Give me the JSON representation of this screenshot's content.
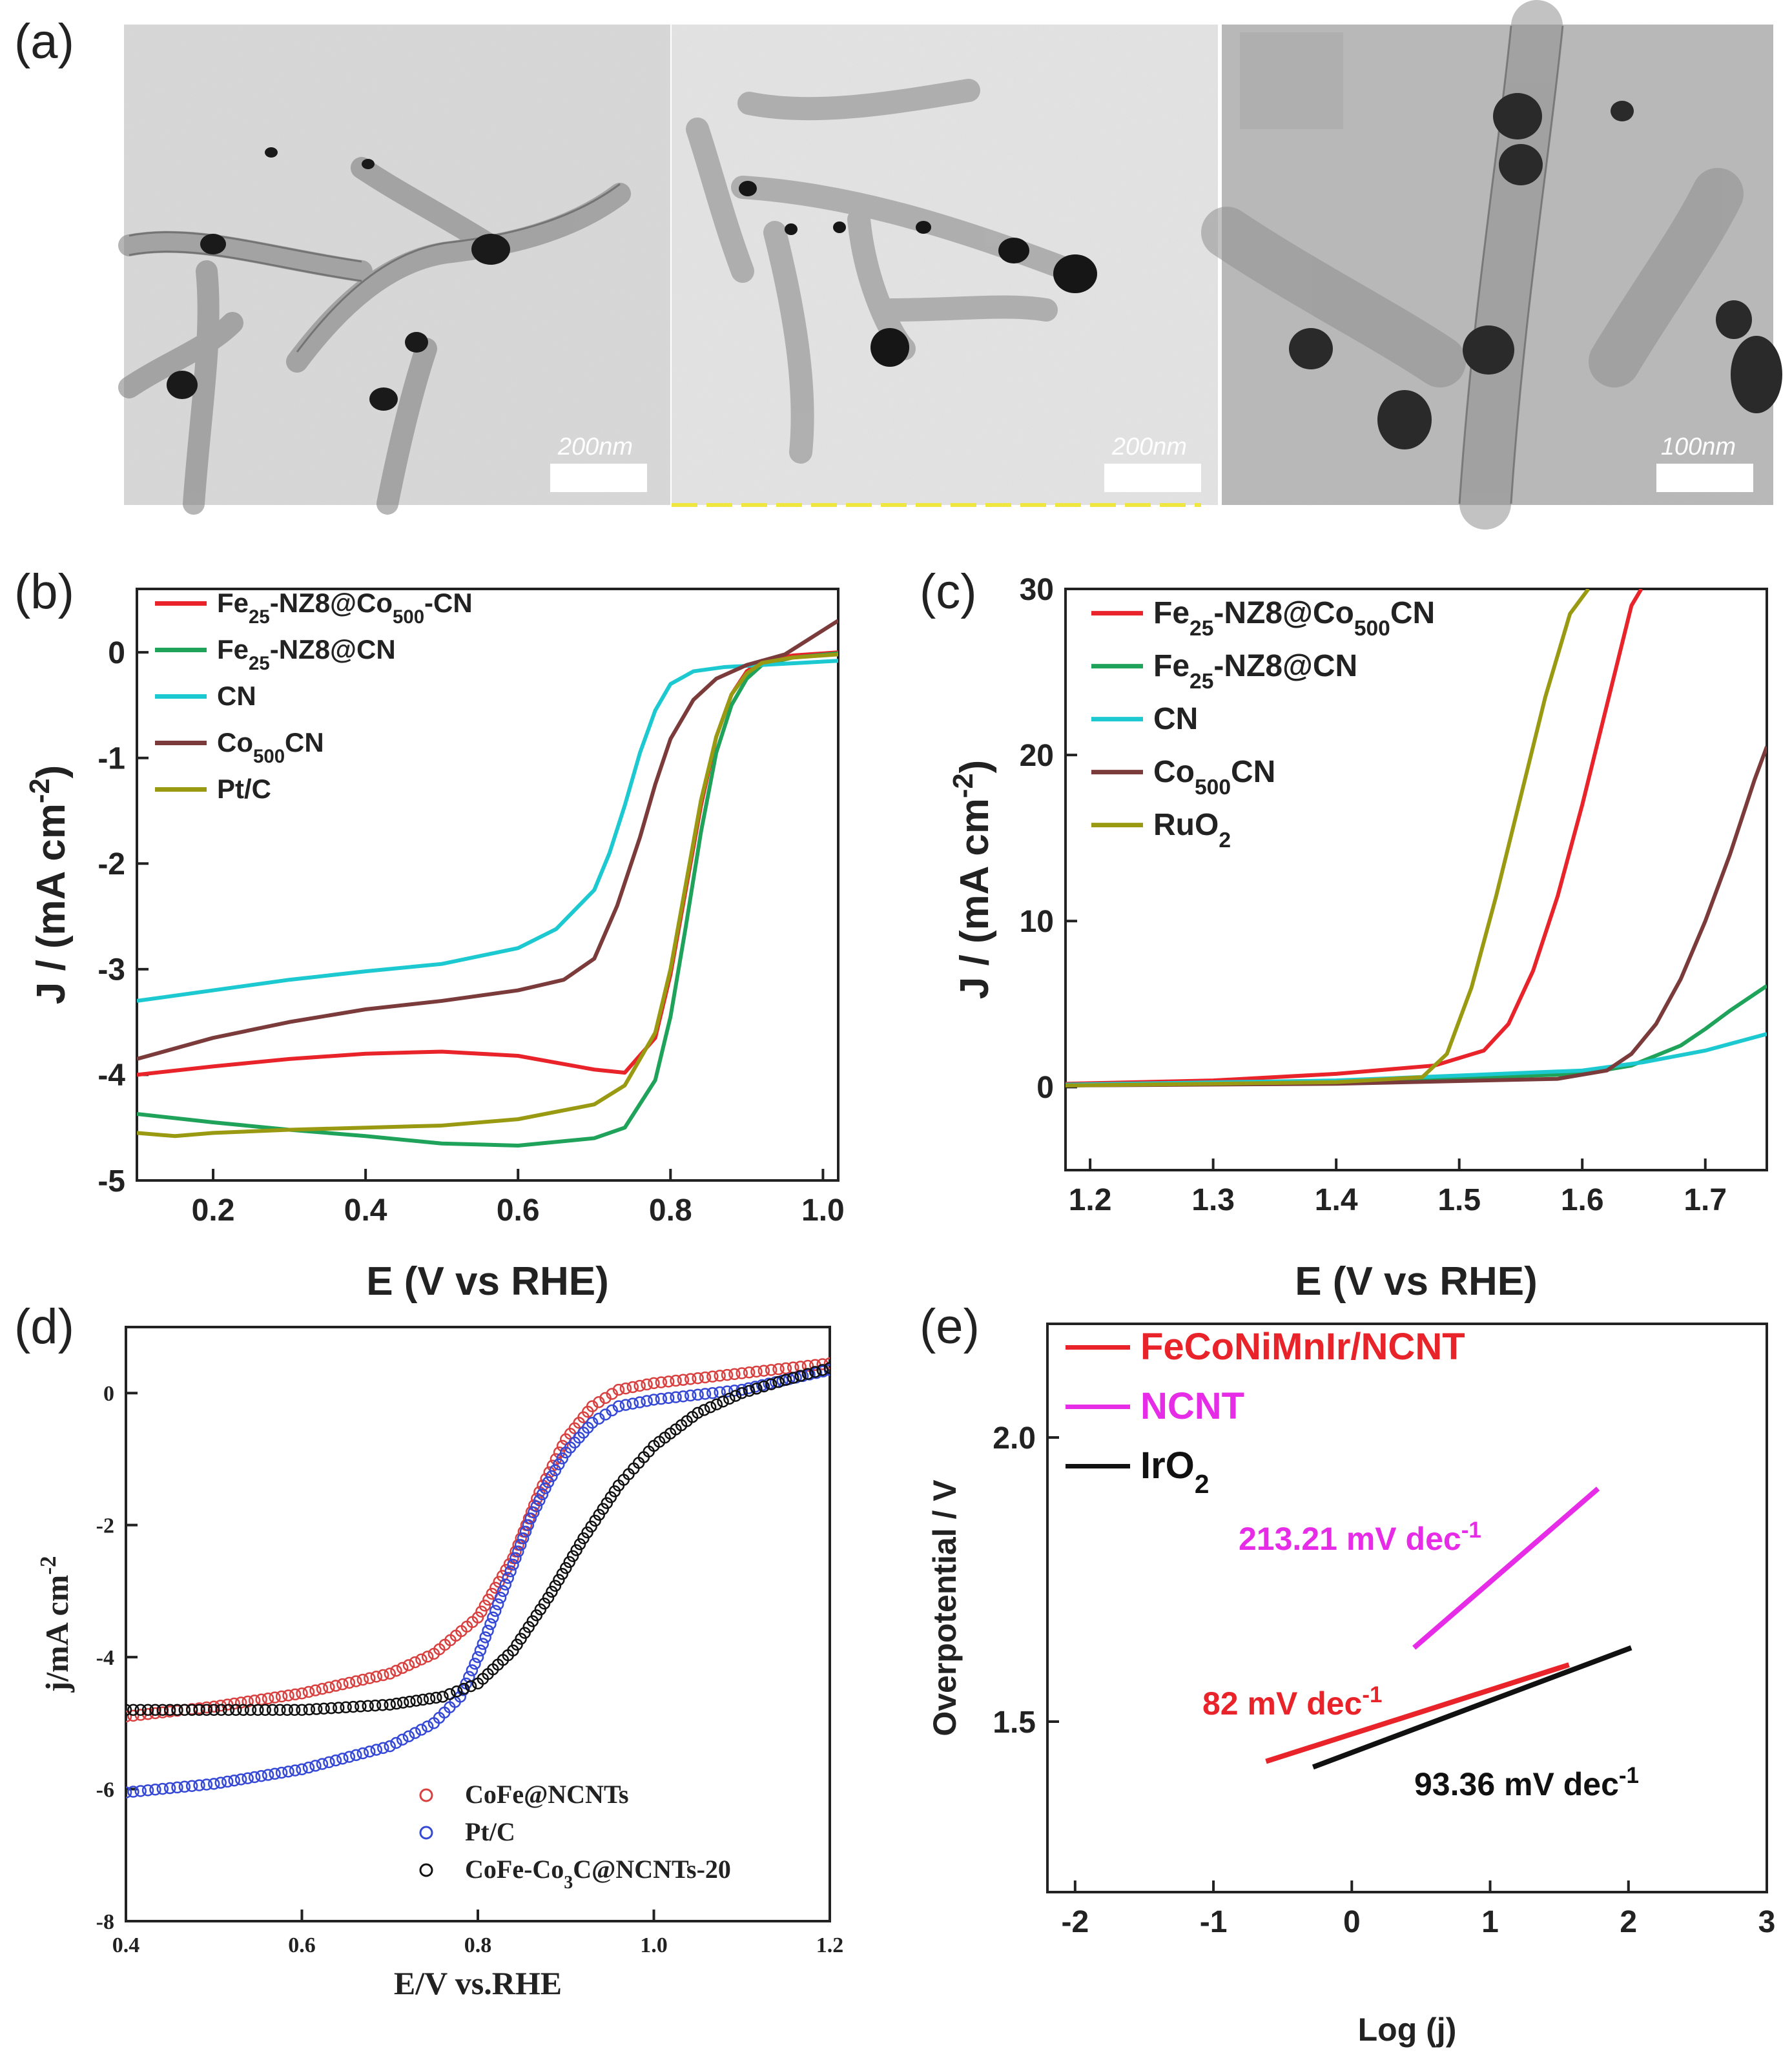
{
  "panel_labels": {
    "a": "(a)",
    "b": "(b)",
    "c": "(c)",
    "d": "(d)",
    "e": "(e)"
  },
  "micrographs": [
    {
      "scale_text": "200nm"
    },
    {
      "scale_text": "200nm"
    },
    {
      "scale_text": "100nm"
    }
  ],
  "colors": {
    "red": "#e8232a",
    "green": "#1fa25a",
    "cyan": "#1cc9d0",
    "brown": "#7b3b3b",
    "olive": "#9a9a12",
    "magenta": "#e62ce6",
    "black": "#111111",
    "blue": "#3548d6"
  },
  "chart_data": [
    {
      "id": "b",
      "type": "line",
      "xlabel": "E (V vs RHE)",
      "ylabel": "J / (mA cm-2)",
      "xlim": [
        0.1,
        1.02
      ],
      "ylim": [
        -5,
        0.6
      ],
      "xticks": [
        0.2,
        0.4,
        0.6,
        0.8,
        1.0
      ],
      "xtick_labels": [
        "0.2",
        "0.4",
        "0.6",
        "0.8",
        "1.0"
      ],
      "yticks": [
        0,
        -1,
        -2,
        -3,
        -4,
        -5
      ],
      "ytick_labels": [
        "0",
        "-1",
        "-2",
        "-3",
        "-4",
        "-5"
      ],
      "legend": [
        {
          "base": "Fe",
          "sub": "25",
          "rest": "-NZ8@Co",
          "sub2": "500",
          "rest2": "-CN"
        },
        {
          "base": "Fe",
          "sub": "25",
          "rest": "-NZ8@CN",
          "sub2": "",
          "rest2": ""
        },
        {
          "base": "CN",
          "sub": "",
          "rest": "",
          "sub2": "",
          "rest2": ""
        },
        {
          "base": "Co",
          "sub": "500",
          "rest": "CN",
          "sub2": "",
          "rest2": ""
        },
        {
          "base": "Pt/C",
          "sub": "",
          "rest": "",
          "sub2": "",
          "rest2": ""
        }
      ],
      "series": [
        {
          "name": "Fe25-NZ8@Co500-CN",
          "color": "#e8232a",
          "x": [
            0.1,
            0.2,
            0.3,
            0.4,
            0.5,
            0.6,
            0.7,
            0.74,
            0.78,
            0.8,
            0.82,
            0.84,
            0.86,
            0.88,
            0.9,
            0.92,
            0.96,
            1.02
          ],
          "y": [
            -4.0,
            -3.92,
            -3.85,
            -3.8,
            -3.78,
            -3.82,
            -3.95,
            -3.98,
            -3.65,
            -3.05,
            -2.25,
            -1.45,
            -0.8,
            -0.4,
            -0.18,
            -0.08,
            -0.03,
            0.0
          ]
        },
        {
          "name": "Fe25-NZ8@CN",
          "color": "#1fa25a",
          "x": [
            0.1,
            0.2,
            0.3,
            0.4,
            0.5,
            0.6,
            0.7,
            0.74,
            0.78,
            0.8,
            0.82,
            0.84,
            0.86,
            0.88,
            0.9,
            0.92,
            0.96,
            1.02
          ],
          "y": [
            -4.37,
            -4.45,
            -4.52,
            -4.58,
            -4.65,
            -4.67,
            -4.6,
            -4.5,
            -4.05,
            -3.45,
            -2.6,
            -1.7,
            -0.95,
            -0.5,
            -0.25,
            -0.12,
            -0.05,
            -0.01
          ]
        },
        {
          "name": "CN",
          "color": "#1cc9d0",
          "x": [
            0.1,
            0.2,
            0.3,
            0.4,
            0.5,
            0.6,
            0.65,
            0.7,
            0.72,
            0.74,
            0.76,
            0.78,
            0.8,
            0.83,
            0.87,
            0.92,
            0.97,
            1.02
          ],
          "y": [
            -3.3,
            -3.2,
            -3.1,
            -3.02,
            -2.95,
            -2.8,
            -2.62,
            -2.25,
            -1.9,
            -1.45,
            -0.95,
            -0.55,
            -0.3,
            -0.18,
            -0.14,
            -0.12,
            -0.1,
            -0.08
          ]
        },
        {
          "name": "Co500CN",
          "color": "#7b3b3b",
          "x": [
            0.1,
            0.2,
            0.3,
            0.4,
            0.5,
            0.6,
            0.66,
            0.7,
            0.73,
            0.76,
            0.78,
            0.8,
            0.83,
            0.86,
            0.9,
            0.95,
            1.02
          ],
          "y": [
            -3.85,
            -3.65,
            -3.5,
            -3.38,
            -3.3,
            -3.2,
            -3.1,
            -2.9,
            -2.4,
            -1.75,
            -1.25,
            -0.82,
            -0.45,
            -0.25,
            -0.12,
            -0.02,
            0.3
          ]
        },
        {
          "name": "Pt/C",
          "color": "#9a9a12",
          "x": [
            0.1,
            0.15,
            0.2,
            0.3,
            0.4,
            0.5,
            0.6,
            0.7,
            0.74,
            0.78,
            0.8,
            0.82,
            0.84,
            0.86,
            0.88,
            0.9,
            0.92,
            0.96,
            1.02
          ],
          "y": [
            -4.55,
            -4.58,
            -4.55,
            -4.52,
            -4.5,
            -4.48,
            -4.42,
            -4.28,
            -4.1,
            -3.6,
            -3.0,
            -2.2,
            -1.4,
            -0.8,
            -0.4,
            -0.2,
            -0.1,
            -0.05,
            -0.02
          ]
        }
      ]
    },
    {
      "id": "c",
      "type": "line",
      "xlabel": "E (V vs RHE)",
      "ylabel": "J / (mA cm-2)",
      "xlim": [
        1.18,
        1.75
      ],
      "ylim": [
        -5,
        30
      ],
      "xticks": [
        1.2,
        1.3,
        1.4,
        1.5,
        1.6,
        1.7
      ],
      "xtick_labels": [
        "1.2",
        "1.3",
        "1.4",
        "1.5",
        "1.6",
        "1.7"
      ],
      "yticks": [
        0,
        10,
        20,
        30
      ],
      "ytick_labels": [
        "0",
        "10",
        "20",
        "30"
      ],
      "legend": [
        {
          "base": "Fe",
          "sub": "25",
          "rest": "-NZ8@Co",
          "sub2": "500",
          "rest2": "CN"
        },
        {
          "base": "Fe",
          "sub": "25",
          "rest": "-NZ8@CN",
          "sub2": "",
          "rest2": ""
        },
        {
          "base": "CN",
          "sub": "",
          "rest": "",
          "sub2": "",
          "rest2": ""
        },
        {
          "base": "Co",
          "sub": "500",
          "rest": "CN",
          "sub2": "",
          "rest2": ""
        },
        {
          "base": "RuO",
          "sub": "2",
          "rest": "",
          "sub2": "",
          "rest2": ""
        }
      ],
      "series": [
        {
          "name": "Fe25-NZ8@Co500CN",
          "color": "#e8232a",
          "x": [
            1.18,
            1.3,
            1.4,
            1.48,
            1.52,
            1.54,
            1.56,
            1.58,
            1.6,
            1.62,
            1.64,
            1.648
          ],
          "y": [
            0.2,
            0.4,
            0.8,
            1.3,
            2.2,
            3.8,
            7.0,
            11.5,
            17.0,
            23.0,
            29.0,
            30.0
          ]
        },
        {
          "name": "Fe25-NZ8@CN",
          "color": "#1fa25a",
          "x": [
            1.18,
            1.4,
            1.6,
            1.64,
            1.68,
            1.7,
            1.72,
            1.75
          ],
          "y": [
            0.1,
            0.3,
            0.8,
            1.3,
            2.5,
            3.5,
            4.6,
            6.1
          ]
        },
        {
          "name": "CN",
          "color": "#1cc9d0",
          "x": [
            1.18,
            1.4,
            1.6,
            1.65,
            1.7,
            1.75
          ],
          "y": [
            0.15,
            0.4,
            1.0,
            1.5,
            2.2,
            3.2
          ]
        },
        {
          "name": "Co500CN",
          "color": "#7b3b3b",
          "x": [
            1.18,
            1.4,
            1.58,
            1.62,
            1.64,
            1.66,
            1.68,
            1.7,
            1.72,
            1.74,
            1.75
          ],
          "y": [
            0.1,
            0.2,
            0.5,
            1.0,
            2.0,
            3.8,
            6.5,
            10.0,
            14.0,
            18.5,
            20.5
          ]
        },
        {
          "name": "RuO2",
          "color": "#9a9a12",
          "x": [
            1.18,
            1.3,
            1.4,
            1.47,
            1.49,
            1.51,
            1.53,
            1.55,
            1.57,
            1.59,
            1.605
          ],
          "y": [
            0.1,
            0.2,
            0.3,
            0.6,
            2.0,
            6.0,
            11.5,
            17.5,
            23.5,
            28.5,
            30.0
          ]
        }
      ]
    },
    {
      "id": "d",
      "type": "scatter",
      "xlabel": "E/V vs.RHE",
      "ylabel": "j/mA cm-2",
      "xlim": [
        0.4,
        1.2
      ],
      "ylim": [
        -8,
        1
      ],
      "xticks": [
        0.4,
        0.6,
        0.8,
        1.0,
        1.2
      ],
      "xtick_labels": [
        "0.4",
        "0.6",
        "0.8",
        "1.0",
        "1.2"
      ],
      "yticks": [
        0,
        -2,
        -4,
        -6,
        -8
      ],
      "ytick_labels": [
        "0",
        "-2",
        "-4",
        "-6",
        "-8"
      ],
      "legend": [
        {
          "base": "CoFe@NCNTs",
          "sub": "",
          "rest": ""
        },
        {
          "base": "Pt/C",
          "sub": "",
          "rest": ""
        },
        {
          "base": "CoFe-Co",
          "sub": "3",
          "rest": "C@NCNTs-20"
        }
      ],
      "series": [
        {
          "name": "CoFe@NCNTs",
          "color": "#d94040",
          "x": [
            0.4,
            0.5,
            0.6,
            0.7,
            0.75,
            0.8,
            0.84,
            0.87,
            0.9,
            0.93,
            0.96,
            1.0,
            1.1,
            1.2
          ],
          "y": [
            -4.9,
            -4.75,
            -4.55,
            -4.25,
            -3.95,
            -3.4,
            -2.5,
            -1.5,
            -0.7,
            -0.2,
            0.05,
            0.15,
            0.3,
            0.45
          ]
        },
        {
          "name": "Pt/C",
          "color": "#3548d6",
          "x": [
            0.4,
            0.5,
            0.6,
            0.7,
            0.75,
            0.78,
            0.8,
            0.82,
            0.84,
            0.86,
            0.88,
            0.9,
            0.93,
            0.96,
            1.0,
            1.1,
            1.2
          ],
          "y": [
            -6.05,
            -5.92,
            -5.7,
            -5.35,
            -5.0,
            -4.6,
            -4.0,
            -3.3,
            -2.6,
            -1.9,
            -1.35,
            -0.9,
            -0.45,
            -0.2,
            -0.1,
            0.05,
            0.35
          ]
        },
        {
          "name": "CoFe-Co3C@NCNTs-20",
          "color": "#111111",
          "x": [
            0.4,
            0.5,
            0.6,
            0.7,
            0.76,
            0.8,
            0.84,
            0.88,
            0.92,
            0.96,
            1.0,
            1.05,
            1.1,
            1.15,
            1.2
          ],
          "y": [
            -4.8,
            -4.8,
            -4.8,
            -4.72,
            -4.6,
            -4.4,
            -3.9,
            -3.1,
            -2.2,
            -1.4,
            -0.8,
            -0.3,
            0.0,
            0.2,
            0.38
          ]
        }
      ]
    },
    {
      "id": "e",
      "type": "line",
      "xlabel": "Log (j)",
      "ylabel": "Overpotential / V",
      "xlim": [
        -2.2,
        3.0
      ],
      "ylim": [
        1.2,
        2.2
      ],
      "xticks": [
        -2,
        -1,
        0,
        1,
        2,
        3
      ],
      "xtick_labels": [
        "-2",
        "-1",
        "0",
        "1",
        "2",
        "3"
      ],
      "yticks": [
        1.5,
        2.0
      ],
      "ytick_labels": [
        "1.5",
        "2.0"
      ],
      "legend": [
        {
          "base": "FeCoNiMnIr/NCNT",
          "sub": "",
          "rest": ""
        },
        {
          "base": "NCNT",
          "sub": "",
          "rest": ""
        },
        {
          "base": "IrO",
          "sub": "2",
          "rest": ""
        }
      ],
      "series": [
        {
          "name": "FeCoNiMnIr/NCNT",
          "color": "#e8232a",
          "x": [
            -0.62,
            1.57
          ],
          "y": [
            1.43,
            1.6
          ]
        },
        {
          "name": "NCNT",
          "color": "#e62ce6",
          "x": [
            0.45,
            1.78
          ],
          "y": [
            1.63,
            1.91
          ]
        },
        {
          "name": "IrO2",
          "color": "#111111",
          "x": [
            -0.28,
            2.02
          ],
          "y": [
            1.42,
            1.63
          ]
        }
      ],
      "annotations": [
        {
          "text": "213.21 mV dec",
          "sup": "-1",
          "color": "#e62ce6"
        },
        {
          "text": "82 mV dec",
          "sup": "-1",
          "color": "#e8232a"
        },
        {
          "text": "93.36 mV dec",
          "sup": "-1",
          "color": "#111111"
        }
      ]
    }
  ]
}
